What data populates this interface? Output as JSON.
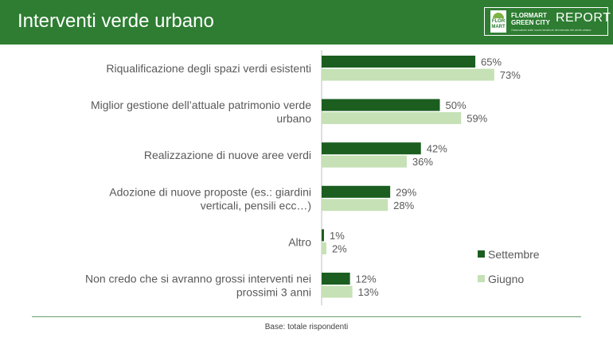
{
  "header": {
    "title": "Interventi verde urbano",
    "logo": {
      "mark_text": "FLOR MART",
      "brand_line1": "FLORMART",
      "brand_line2": "GREEN CITY",
      "report": "REPORT",
      "tagline": "Osservatorio sulle nuove tendenze del mercato del verde urbano"
    }
  },
  "colors": {
    "header_bg": "#2e7d32",
    "settembre": "#1b5e20",
    "giugno": "#c5e1b5"
  },
  "chart_data": {
    "type": "bar",
    "orientation": "horizontal",
    "categories": [
      [
        "Riqualificazione degli spazi verdi esistenti"
      ],
      [
        "Miglior gestione dell’attuale patrimonio verde",
        "urbano"
      ],
      [
        "Realizzazione di nuove aree verdi"
      ],
      [
        "Adozione di nuove proposte (es.: giardini",
        "verticali, pensili ecc…)"
      ],
      [
        "Altro"
      ],
      [
        "Non credo che si avranno grossi interventi nei",
        "prossimi 3 anni"
      ]
    ],
    "series": [
      {
        "name": "Settembre",
        "values": [
          65,
          50,
          42,
          29,
          1,
          12
        ],
        "color": "#1b5e20"
      },
      {
        "name": "Giugno",
        "values": [
          73,
          59,
          36,
          28,
          2,
          13
        ],
        "color": "#c5e1b5"
      }
    ],
    "value_suffix": "%",
    "xlim": [
      0,
      100
    ],
    "grid": false,
    "legend_position": "right"
  },
  "footer": {
    "note": "Base: totale rispondenti"
  }
}
